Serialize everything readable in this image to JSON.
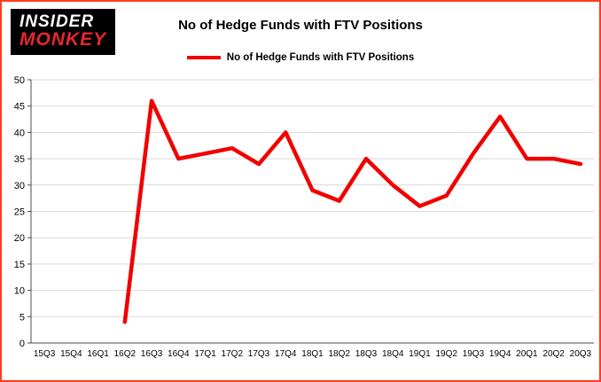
{
  "logo": {
    "line1": "INSIDER",
    "line2": "MONKEY"
  },
  "title": "No of Hedge Funds with FTV Positions",
  "legend": {
    "label": "No of Hedge Funds with FTV Positions"
  },
  "colors": {
    "line": "#f20000",
    "border": "#ff3b1f",
    "grid": "#d9d9d9",
    "axis": "#4d4d4d",
    "logo_bg": "#000000",
    "logo_monkey": "#e8262d"
  },
  "chart_data": {
    "type": "line",
    "title": "No of Hedge Funds with FTV Positions",
    "categories": [
      "15Q3",
      "15Q4",
      "16Q1",
      "16Q2",
      "16Q3",
      "16Q4",
      "17Q1",
      "17Q2",
      "17Q3",
      "17Q4",
      "18Q1",
      "18Q2",
      "18Q3",
      "18Q4",
      "19Q1",
      "19Q2",
      "19Q3",
      "19Q4",
      "20Q1",
      "20Q2",
      "20Q3"
    ],
    "values": [
      null,
      null,
      null,
      4,
      46,
      35,
      36,
      37,
      34,
      40,
      29,
      27,
      35,
      30,
      26,
      28,
      36,
      43,
      35,
      35,
      34
    ],
    "xlabel": "",
    "ylabel": "",
    "ylim": [
      0,
      50
    ],
    "ytick_step": 5,
    "grid": true,
    "legend_position": "top"
  }
}
